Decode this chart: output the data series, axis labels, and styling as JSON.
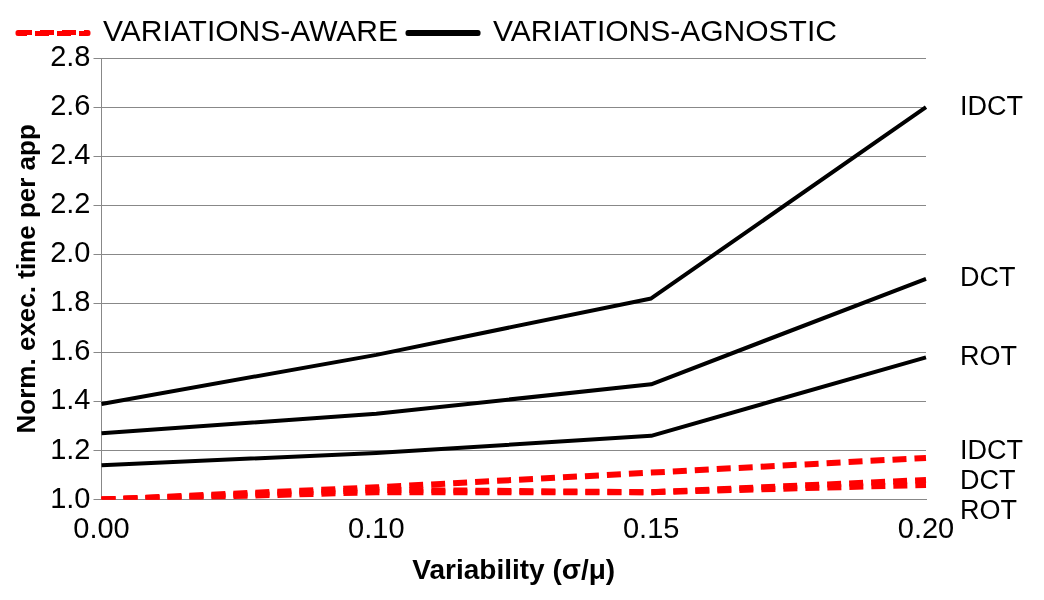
{
  "chart_data": {
    "type": "line",
    "xlabel": "Variability (σ/μ)",
    "ylabel": "Norm. exec. time per app",
    "categories": [
      "0.00",
      "0.10",
      "0.15",
      "0.20"
    ],
    "series": [
      {
        "name": "VARIATIONS-AWARE",
        "color": "#ff0000",
        "line_style": "dashed",
        "values": [
          1.0,
          1.05,
          1.11,
          1.17
        ]
      },
      {
        "color": "#ff0000",
        "line_style": "dashed",
        "values": [
          1.0,
          1.04,
          1.03,
          1.08
        ]
      },
      {
        "color": "#ff0000",
        "line_style": "dashed",
        "values": [
          1.0,
          1.03,
          1.03,
          1.06
        ]
      },
      {
        "name": "VARIATIONS-AGNOSTIC",
        "color": "#000000",
        "line_style": "solid",
        "values": [
          1.39,
          1.59,
          1.82,
          2.6
        ]
      },
      {
        "color": "#000000",
        "line_style": "solid",
        "values": [
          1.27,
          1.35,
          1.47,
          1.9
        ]
      },
      {
        "color": "#000000",
        "line_style": "solid",
        "values": [
          1.14,
          1.19,
          1.26,
          1.58
        ]
      }
    ],
    "ylim": [
      1.0,
      2.8
    ],
    "yticks": [
      {
        "value": 1.0,
        "label": "1.0"
      },
      {
        "value": 1.2,
        "label": "1.2"
      },
      {
        "value": 1.4,
        "label": "1.4"
      },
      {
        "value": 1.6,
        "label": "1.6"
      },
      {
        "value": 1.8,
        "label": "1.8"
      },
      {
        "value": 2.0,
        "label": "2.0"
      },
      {
        "value": 2.2,
        "label": "2.2"
      },
      {
        "value": 2.4,
        "label": "2.4"
      },
      {
        "value": 2.6,
        "label": "2.6"
      },
      {
        "value": 2.8,
        "label": "2.8"
      }
    ],
    "grid": "y",
    "legend": "top",
    "marker": "none",
    "annotations": [
      {
        "text": "IDCT",
        "x": "0.20",
        "y": 2.6
      },
      {
        "text": "DCT",
        "x": "0.20",
        "y": 1.9
      },
      {
        "text": "ROT",
        "x": "0.20",
        "y": 1.58
      },
      {
        "text": "IDCT",
        "x": "0.20",
        "y": 1.17
      },
      {
        "text": "DCT",
        "x": "0.20",
        "y": 1.08
      },
      {
        "text": "ROT",
        "x": "0.20",
        "y": 1.06
      }
    ]
  }
}
